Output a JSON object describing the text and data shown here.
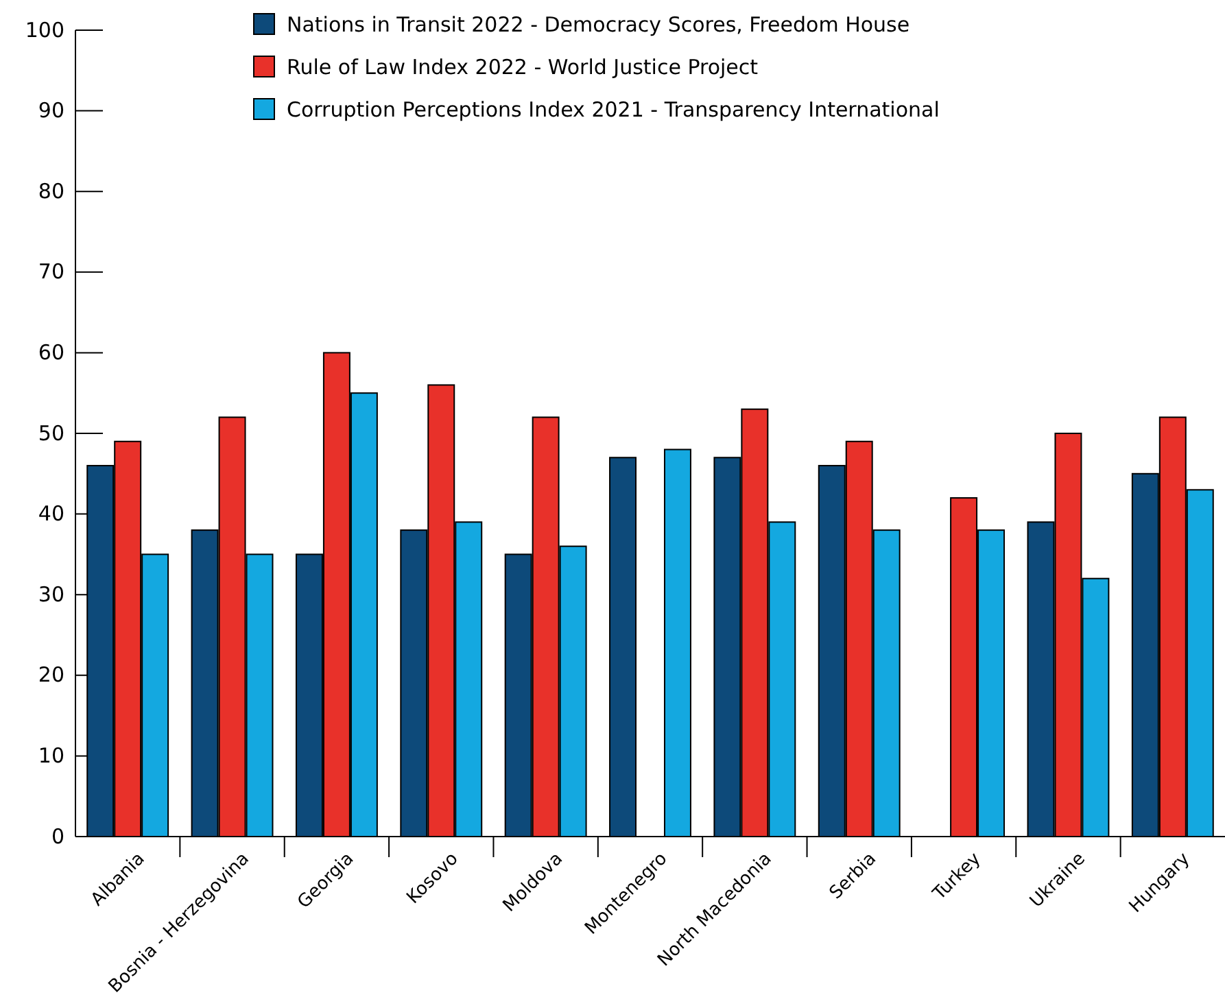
{
  "chart_data": {
    "type": "bar",
    "categories": [
      "Albania",
      "Bosnia - Herzegovina",
      "Georgia",
      "Kosovo",
      "Moldova",
      "Montenegro",
      "North Macedonia",
      "Serbia",
      "Turkey",
      "Ukraine",
      "Hungary"
    ],
    "series": [
      {
        "name": "Nations in Transit 2022 - Democracy Scores, Freedom House",
        "color": "#0d4a7a",
        "values": [
          46,
          38,
          35,
          38,
          35,
          47,
          47,
          46,
          null,
          39,
          45
        ]
      },
      {
        "name": "Rule of Law Index 2022 - World Justice Project",
        "color": "#e8312a",
        "values": [
          49,
          52,
          60,
          56,
          52,
          null,
          53,
          49,
          42,
          50,
          52
        ]
      },
      {
        "name": "Corruption Perceptions Index 2021 - Transparency International",
        "color": "#14a8e0",
        "values": [
          35,
          35,
          55,
          39,
          36,
          48,
          39,
          38,
          38,
          32,
          43
        ]
      }
    ],
    "ylim": [
      0,
      100
    ],
    "yticks": [
      0,
      10,
      20,
      30,
      40,
      50,
      60,
      70,
      80,
      90,
      100
    ],
    "grid": false,
    "legend": "top"
  }
}
